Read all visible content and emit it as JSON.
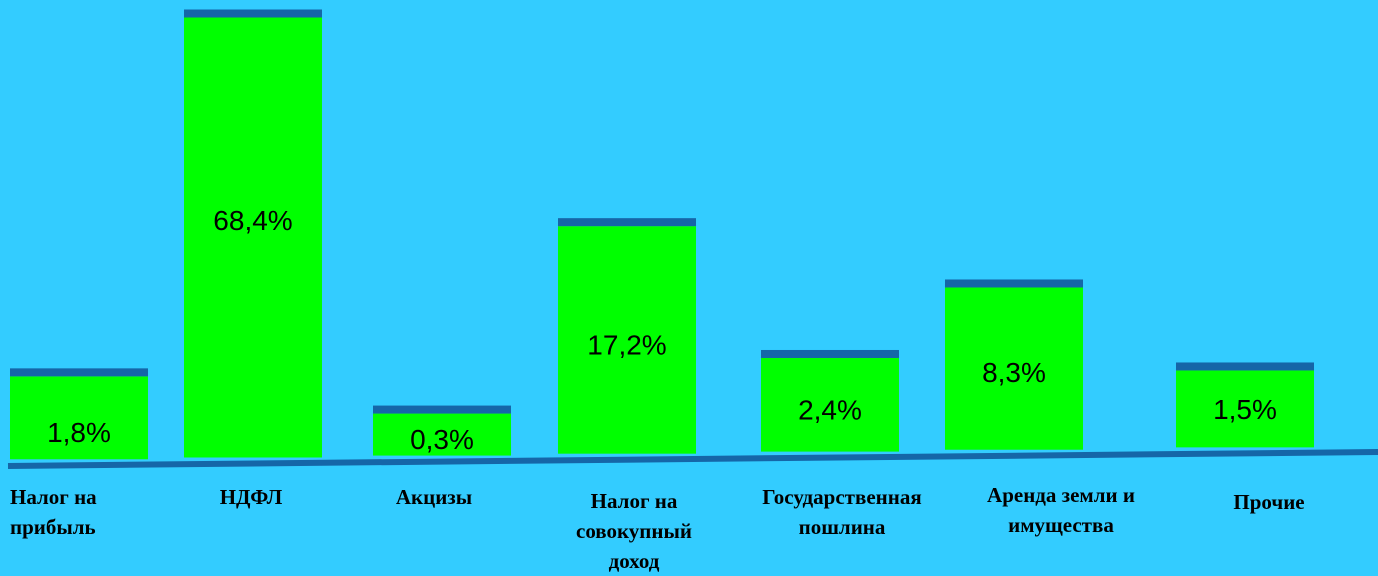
{
  "chart_data": {
    "type": "bar",
    "categories": [
      "Налог на прибыль",
      "НДФЛ",
      "Акцизы",
      "Налог на совокупный доход",
      "Государственная пошлина",
      "Аренда земли и имущества",
      "Прочие"
    ],
    "category_lines": [
      [
        "Налог на",
        "прибыль"
      ],
      [
        "НДФЛ"
      ],
      [
        "Акцизы"
      ],
      [
        "Налог на",
        "совокупный",
        "доход"
      ],
      [
        "Государственная",
        "пошлина"
      ],
      [
        "Аренда земли и",
        "имущества"
      ],
      [
        "Прочие"
      ]
    ],
    "values": [
      1.8,
      68.4,
      0.3,
      17.2,
      2.4,
      8.3,
      1.5
    ],
    "data_labels": [
      "1,8%",
      "68,4%",
      "0,3%",
      "17,2%",
      "2,4%",
      "8,3%",
      "1,5%"
    ],
    "title": "",
    "xlabel": "",
    "ylabel": "",
    "grid": false,
    "legend": "none",
    "colors": {
      "background": "#33ccff",
      "bar_fill": "#00ff00",
      "bar_top": "#1566a8",
      "baseline": "#1566a8",
      "text": "#000000"
    }
  }
}
